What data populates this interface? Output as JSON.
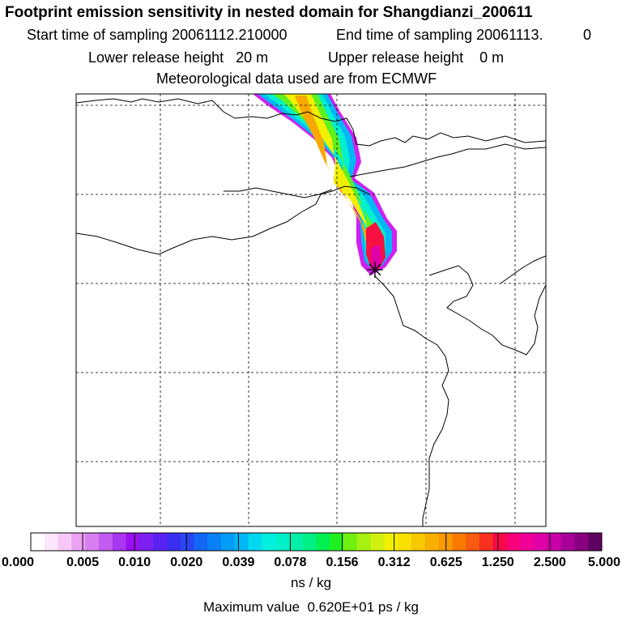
{
  "header": {
    "title": "Footprint emission sensitivity in nested domain for Shangdianzi_200611",
    "start_sampling": "Start time of sampling 20061112.210000",
    "end_sampling": "End time of sampling 20061113.",
    "end_sampling_suffix": "0",
    "lower_release": "Lower release height   20 m",
    "upper_release": "Upper release height    0 m",
    "met_data": "Meteorological data used are from ECMWF"
  },
  "colorbar": {
    "tick_labels": [
      "0.000",
      "0.005",
      "0.010",
      "0.020",
      "0.039",
      "0.078",
      "0.156",
      "0.312",
      "0.625",
      "1.250",
      "2.500",
      "5.000"
    ],
    "colors": [
      "#ffffff",
      "#fbe6fb",
      "#f5c8f8",
      "#eba2f3",
      "#d77ef0",
      "#c25cf0",
      "#a936f0",
      "#9a10f0",
      "#7a20f0",
      "#5a22f2",
      "#3a2ef2",
      "#2a44f4",
      "#1268f5",
      "#0880f6",
      "#009cf6",
      "#00b8f6",
      "#00d8f0",
      "#00f0e0",
      "#00f0c8",
      "#00f0a8",
      "#00f088",
      "#00f050",
      "#20f020",
      "#70f010",
      "#a8f010",
      "#d0f010",
      "#f0f000",
      "#f8e000",
      "#f8c800",
      "#f8b000",
      "#f89a00",
      "#f87a00",
      "#f85a10",
      "#f83020",
      "#f80848",
      "#f8007a",
      "#f00098",
      "#e000a8",
      "#c800a8",
      "#a80098",
      "#880080",
      "#600060"
    ],
    "unit": "ns / kg",
    "max_value": "Maximum value  0.620E+01 ps / kg"
  }
}
